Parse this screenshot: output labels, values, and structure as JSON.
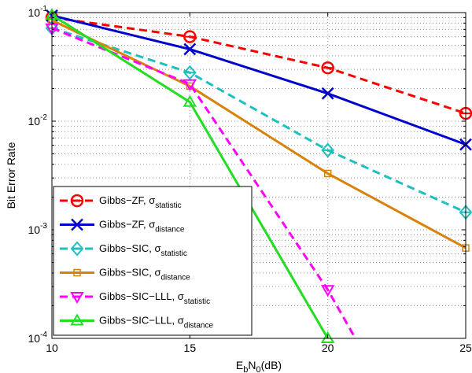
{
  "chart_data": {
    "type": "line",
    "title": "",
    "xlabel": "E",
    "xlabel_sub1": "b",
    "xlabel_mid": "N",
    "xlabel_sub2": "0",
    "xlabel_tail": "(dB)",
    "ylabel": "Bit Error Rate",
    "xlim": [
      10,
      25
    ],
    "ylim": [
      0.0001,
      0.1
    ],
    "yscale": "log",
    "grid": true,
    "legend_position": "bottom-left",
    "x_ticks": [
      "10",
      "15",
      "20",
      "25"
    ],
    "y_ticks": [
      {
        "base": "10",
        "exp": "-1",
        "value": 0.1
      },
      {
        "base": "10",
        "exp": "-2",
        "value": 0.01
      },
      {
        "base": "10",
        "exp": "-3",
        "value": 0.001
      },
      {
        "base": "10",
        "exp": "-4",
        "value": 0.0001
      }
    ],
    "series": [
      {
        "name": "Gibbs−ZF, ",
        "sigma": "σ",
        "sub": "statistic",
        "color": "#ff0000",
        "dash": "dashed",
        "marker": "circle-bar",
        "x": [
          10,
          15,
          20,
          25
        ],
        "y": [
          0.09,
          0.06,
          0.031,
          0.0118
        ]
      },
      {
        "name": "Gibbs−ZF, ",
        "sigma": "σ",
        "sub": "distance",
        "color": "#0000cc",
        "dash": "solid",
        "marker": "x",
        "x": [
          10,
          15,
          20,
          25
        ],
        "y": [
          0.094,
          0.046,
          0.018,
          0.0061
        ]
      },
      {
        "name": "Gibbs−SIC, ",
        "sigma": "σ",
        "sub": "statistic",
        "color": "#1fbfbf",
        "dash": "dashed",
        "marker": "diamond-bar",
        "x": [
          10,
          15,
          20,
          25
        ],
        "y": [
          0.072,
          0.028,
          0.0054,
          0.00145
        ]
      },
      {
        "name": "Gibbs−SIC, ",
        "sigma": "σ",
        "sub": "distance",
        "color": "#d9820b",
        "dash": "solid",
        "marker": "square",
        "x": [
          10,
          15,
          20,
          25
        ],
        "y": [
          0.085,
          0.021,
          0.0033,
          0.00068
        ]
      },
      {
        "name": "Gibbs−SIC−LLL, ",
        "sigma": "σ",
        "sub": "statistic",
        "color": "#ff00ff",
        "dash": "dashed",
        "marker": "triangle-down",
        "x": [
          10,
          15,
          20,
          21
        ],
        "y": [
          0.072,
          0.022,
          0.00028,
          0.0001
        ]
      },
      {
        "name": "Gibbs−SIC−LLL, ",
        "sigma": "σ",
        "sub": "distance",
        "color": "#22dd22",
        "dash": "solid",
        "marker": "triangle-up",
        "x": [
          10,
          15,
          20
        ],
        "y": [
          0.095,
          0.015,
          0.0001
        ]
      }
    ]
  }
}
